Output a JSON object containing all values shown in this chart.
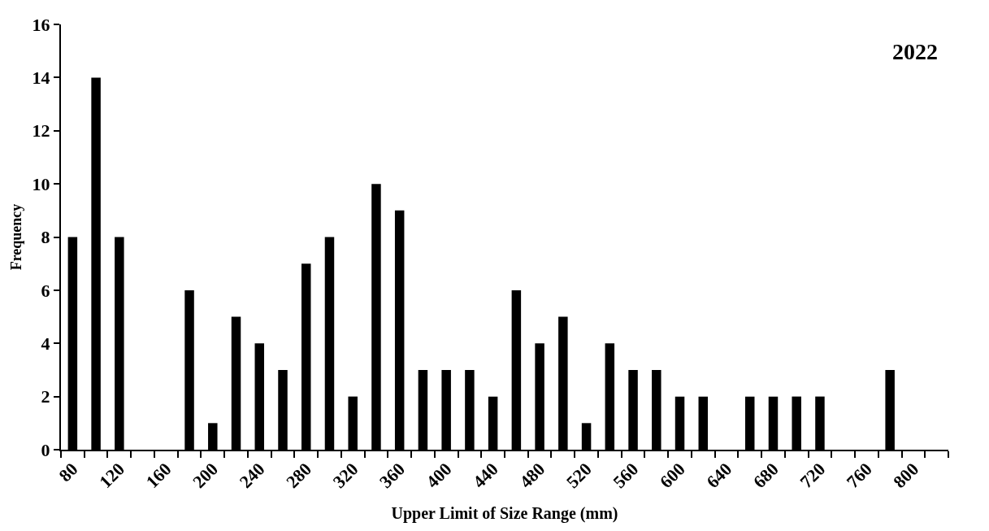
{
  "chart_data": {
    "type": "bar",
    "title": "2022",
    "xlabel": "Upper Limit of Size Range (mm)",
    "ylabel": "Frequency",
    "categories": [
      "80",
      null,
      "120",
      null,
      "160",
      null,
      "200",
      null,
      "240",
      null,
      "280",
      null,
      "320",
      null,
      "360",
      null,
      "400",
      null,
      "440",
      null,
      "480",
      null,
      "520",
      null,
      "560",
      null,
      "600",
      null,
      "640",
      null,
      "680",
      null,
      "720",
      null,
      "760",
      null,
      "800",
      null
    ],
    "values": [
      8,
      14,
      8,
      0,
      0,
      6,
      1,
      5,
      4,
      3,
      7,
      8,
      2,
      10,
      9,
      3,
      3,
      3,
      2,
      6,
      4,
      5,
      1,
      4,
      3,
      3,
      2,
      2,
      0,
      2,
      2,
      2,
      2,
      0,
      0,
      3,
      0,
      0
    ],
    "color": "#000000",
    "ylim": [
      0,
      16
    ],
    "yticks": [
      0,
      2,
      4,
      6,
      8,
      10,
      12,
      14,
      16
    ],
    "legend": false
  }
}
